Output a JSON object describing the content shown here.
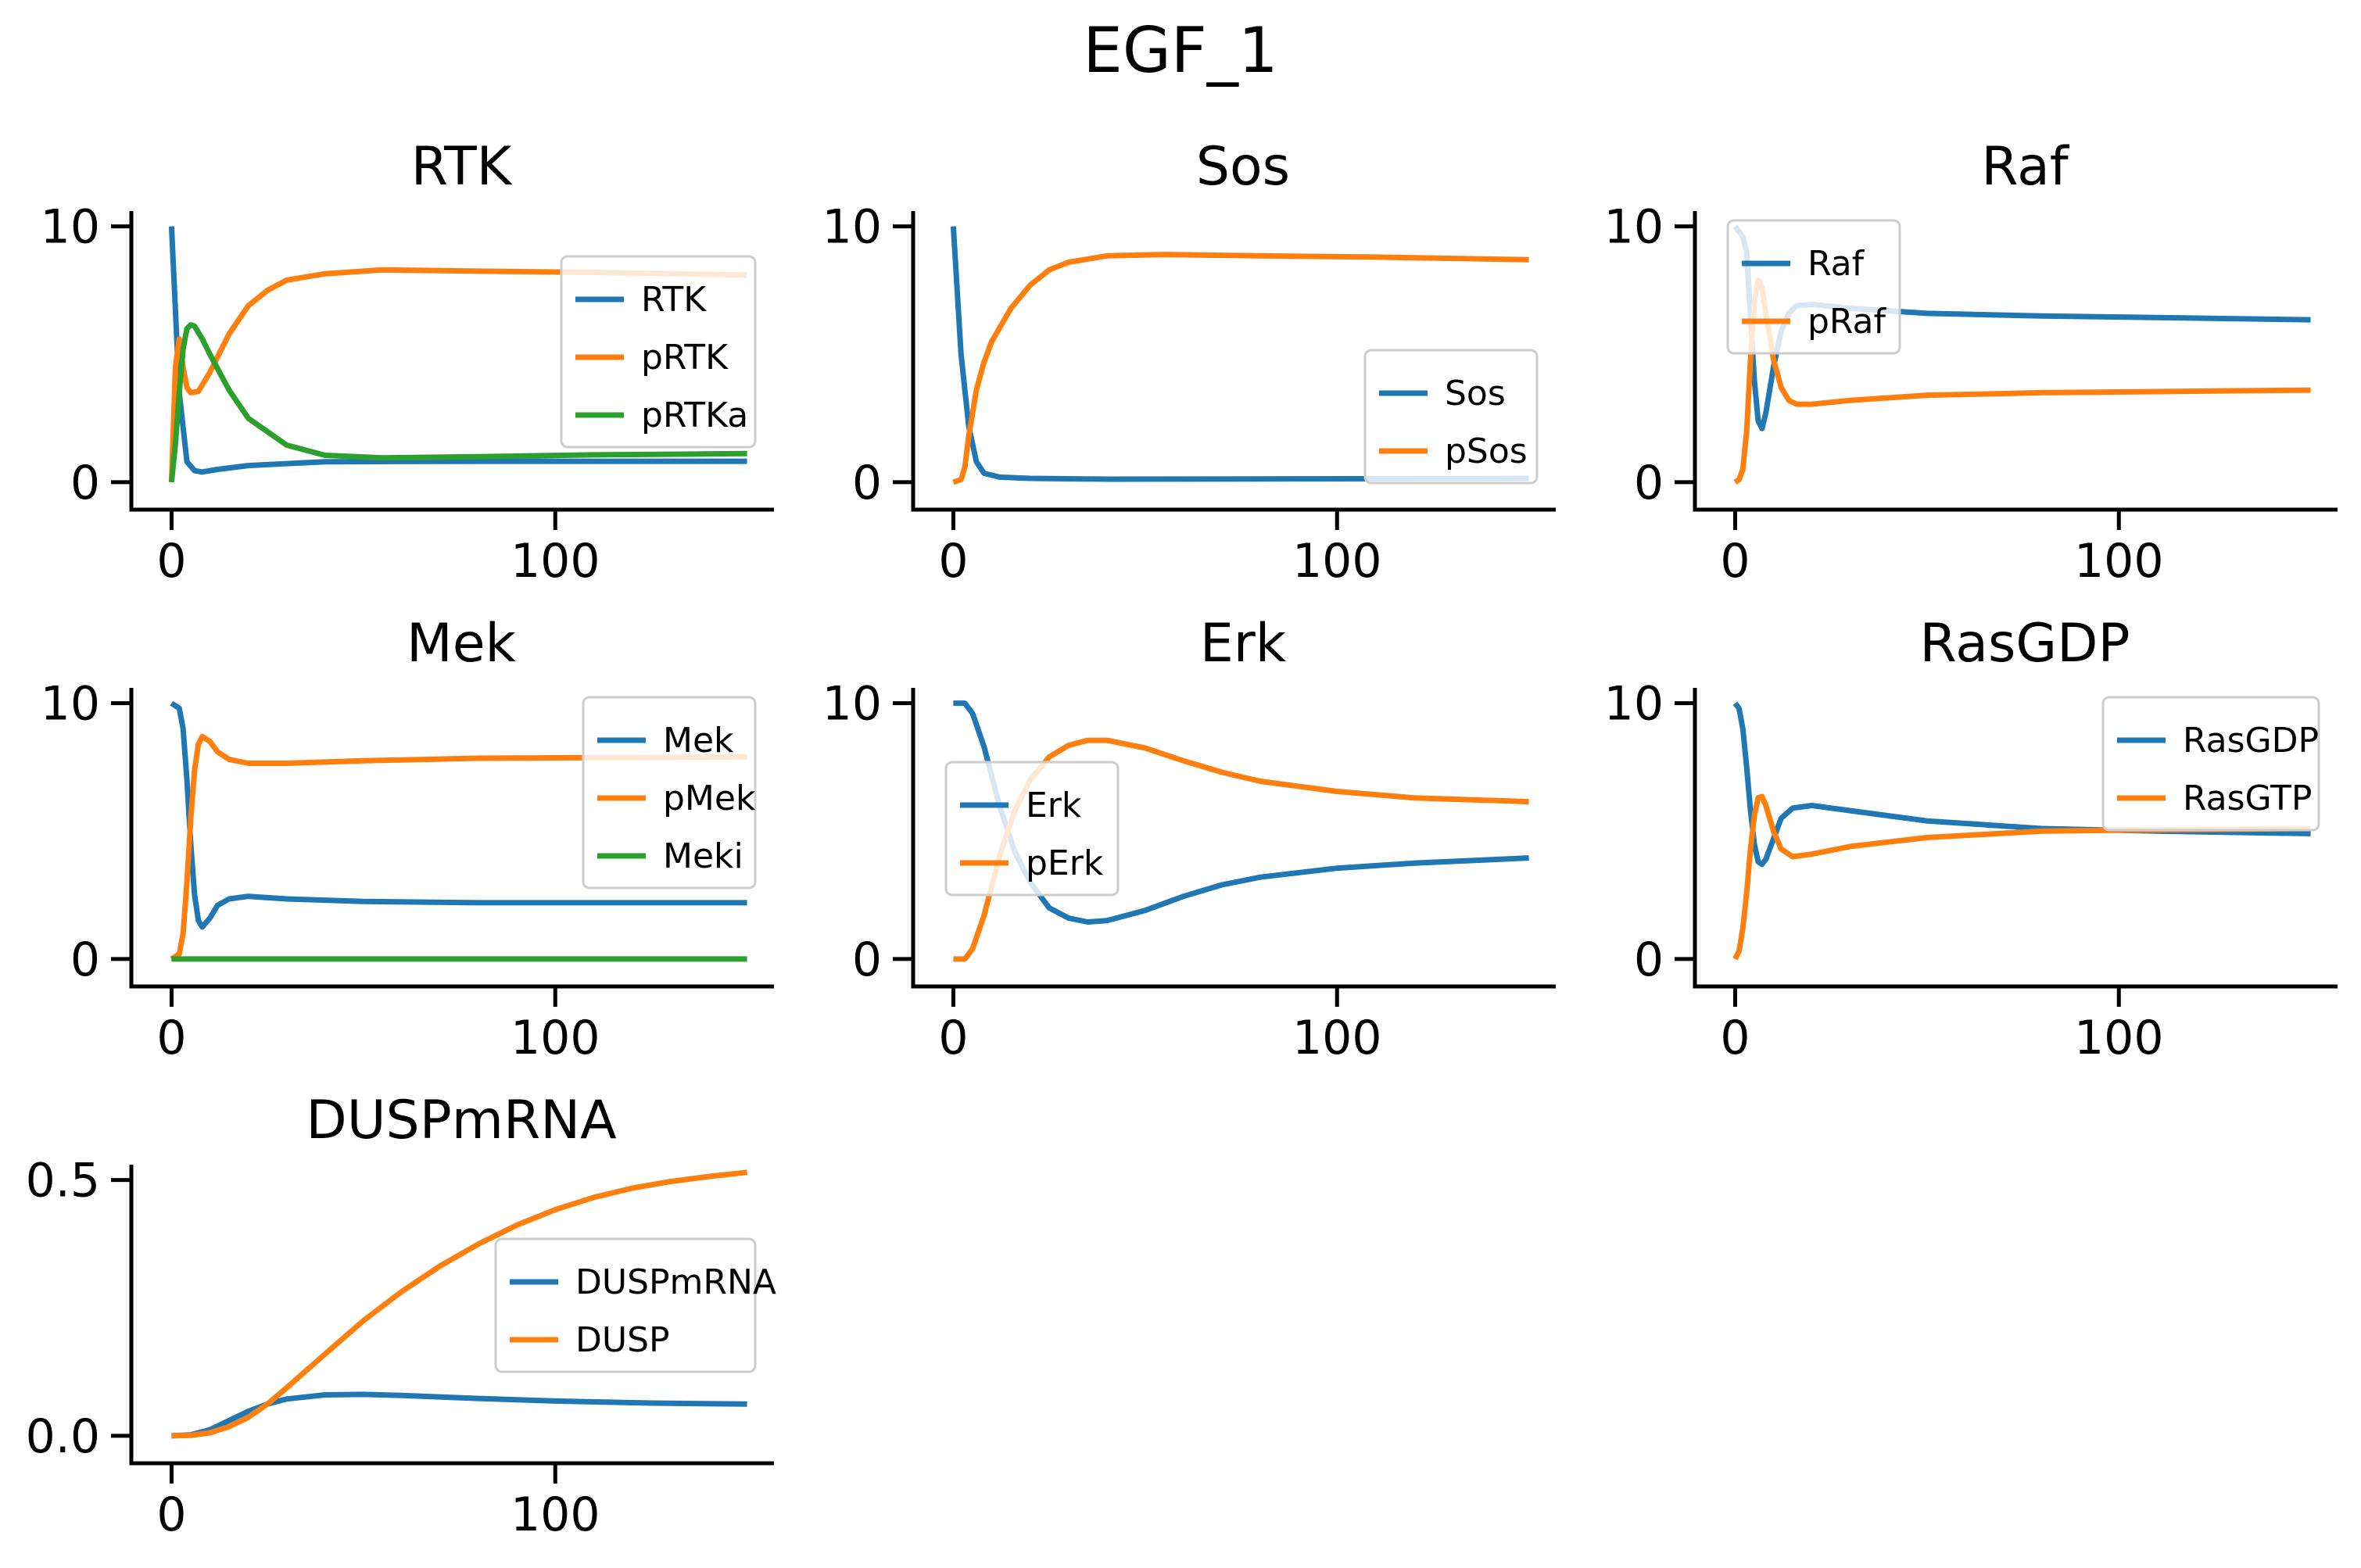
{
  "figure": {
    "title": "EGF_1"
  },
  "colors": {
    "C0": "#1f77b4",
    "C1": "#ff7f0e",
    "C2": "#2ca02c"
  },
  "chart_data": [
    {
      "type": "line",
      "title": "RTK",
      "xlim": [
        -6,
        157
      ],
      "ylim": [
        -0.4,
        10.6
      ],
      "xticks": [
        0,
        100
      ],
      "yticks": [
        0,
        10
      ],
      "legend": "center-right",
      "series": [
        {
          "name": "RTK",
          "color": "C0",
          "points": [
            [
              0,
              10
            ],
            [
              2,
              3.5
            ],
            [
              4,
              0.8
            ],
            [
              6,
              0.45
            ],
            [
              8,
              0.4
            ],
            [
              12,
              0.5
            ],
            [
              20,
              0.65
            ],
            [
              40,
              0.8
            ],
            [
              80,
              0.82
            ],
            [
              150,
              0.82
            ]
          ]
        },
        {
          "name": "pRTK",
          "color": "C1",
          "points": [
            [
              0,
              0
            ],
            [
              1,
              4.5
            ],
            [
              2,
              5.6
            ],
            [
              3,
              4.5
            ],
            [
              4,
              3.7
            ],
            [
              5,
              3.5
            ],
            [
              7,
              3.55
            ],
            [
              10,
              4.3
            ],
            [
              15,
              5.8
            ],
            [
              20,
              6.9
            ],
            [
              25,
              7.5
            ],
            [
              30,
              7.9
            ],
            [
              40,
              8.15
            ],
            [
              55,
              8.3
            ],
            [
              80,
              8.25
            ],
            [
              110,
              8.2
            ],
            [
              150,
              8.1
            ]
          ]
        },
        {
          "name": "pRTKa",
          "color": "C2",
          "points": [
            [
              0,
              0
            ],
            [
              1,
              1.5
            ],
            [
              2,
              3.5
            ],
            [
              3,
              5.2
            ],
            [
              4,
              6
            ],
            [
              5,
              6.15
            ],
            [
              6,
              6.1
            ],
            [
              8,
              5.6
            ],
            [
              10,
              5
            ],
            [
              15,
              3.6
            ],
            [
              20,
              2.5
            ],
            [
              30,
              1.45
            ],
            [
              40,
              1.05
            ],
            [
              55,
              0.95
            ],
            [
              80,
              1
            ],
            [
              110,
              1.07
            ],
            [
              150,
              1.12
            ]
          ]
        }
      ]
    },
    {
      "type": "line",
      "title": "Sos",
      "xlim": [
        -6,
        157
      ],
      "ylim": [
        -0.4,
        10.6
      ],
      "xticks": [
        0,
        100
      ],
      "yticks": [
        0,
        10
      ],
      "legend": "lower-right",
      "series": [
        {
          "name": "Sos",
          "color": "C0",
          "points": [
            [
              0,
              10
            ],
            [
              2,
              5
            ],
            [
              4,
              2.2
            ],
            [
              6,
              0.8
            ],
            [
              8,
              0.35
            ],
            [
              12,
              0.2
            ],
            [
              20,
              0.15
            ],
            [
              40,
              0.12
            ],
            [
              80,
              0.13
            ],
            [
              150,
              0.15
            ]
          ]
        },
        {
          "name": "pSos",
          "color": "C1",
          "points": [
            [
              0,
              0
            ],
            [
              2,
              0.1
            ],
            [
              3,
              0.6
            ],
            [
              4,
              1.8
            ],
            [
              6,
              3.6
            ],
            [
              8,
              4.7
            ],
            [
              10,
              5.5
            ],
            [
              15,
              6.8
            ],
            [
              20,
              7.7
            ],
            [
              25,
              8.3
            ],
            [
              30,
              8.6
            ],
            [
              40,
              8.85
            ],
            [
              55,
              8.9
            ],
            [
              80,
              8.85
            ],
            [
              110,
              8.8
            ],
            [
              150,
              8.7
            ]
          ]
        }
      ]
    },
    {
      "type": "line",
      "title": "Raf",
      "xlim": [
        -6,
        157
      ],
      "ylim": [
        -0.4,
        10.6
      ],
      "xticks": [
        0,
        100
      ],
      "yticks": [
        0,
        10
      ],
      "legend": "upper-left",
      "series": [
        {
          "name": "Raf",
          "color": "C0",
          "points": [
            [
              0,
              10
            ],
            [
              2,
              9.6
            ],
            [
              3,
              9
            ],
            [
              4,
              6.5
            ],
            [
              5,
              4
            ],
            [
              6,
              2.4
            ],
            [
              7,
              2.1
            ],
            [
              8,
              2.7
            ],
            [
              10,
              4.5
            ],
            [
              12,
              5.9
            ],
            [
              14,
              6.6
            ],
            [
              16,
              6.9
            ],
            [
              20,
              6.95
            ],
            [
              30,
              6.8
            ],
            [
              50,
              6.6
            ],
            [
              80,
              6.5
            ],
            [
              150,
              6.35
            ]
          ]
        },
        {
          "name": "pRaf",
          "color": "C1",
          "points": [
            [
              0,
              0
            ],
            [
              1,
              0.1
            ],
            [
              2,
              0.5
            ],
            [
              3,
              2
            ],
            [
              4,
              4.8
            ],
            [
              5,
              7
            ],
            [
              6,
              7.9
            ],
            [
              7,
              7.6
            ],
            [
              8,
              6.6
            ],
            [
              10,
              4.8
            ],
            [
              12,
              3.7
            ],
            [
              14,
              3.2
            ],
            [
              16,
              3.05
            ],
            [
              20,
              3.05
            ],
            [
              30,
              3.2
            ],
            [
              50,
              3.4
            ],
            [
              80,
              3.5
            ],
            [
              150,
              3.6
            ]
          ]
        }
      ]
    },
    {
      "type": "line",
      "title": "Mek",
      "xlim": [
        -6,
        157
      ],
      "ylim": [
        -0.4,
        10.6
      ],
      "xticks": [
        0,
        100
      ],
      "yticks": [
        0,
        10
      ],
      "legend": "upper-right",
      "series": [
        {
          "name": "Mek",
          "color": "C0",
          "points": [
            [
              0,
              10
            ],
            [
              2,
              9.8
            ],
            [
              3,
              9
            ],
            [
              4,
              7
            ],
            [
              5,
              4.5
            ],
            [
              6,
              2.5
            ],
            [
              7,
              1.5
            ],
            [
              8,
              1.25
            ],
            [
              10,
              1.6
            ],
            [
              12,
              2.1
            ],
            [
              15,
              2.35
            ],
            [
              20,
              2.45
            ],
            [
              30,
              2.35
            ],
            [
              50,
              2.25
            ],
            [
              80,
              2.2
            ],
            [
              150,
              2.2
            ]
          ]
        },
        {
          "name": "pMek",
          "color": "C1",
          "points": [
            [
              0,
              0
            ],
            [
              2,
              0.2
            ],
            [
              3,
              1
            ],
            [
              4,
              3
            ],
            [
              5,
              5.5
            ],
            [
              6,
              7.4
            ],
            [
              7,
              8.4
            ],
            [
              8,
              8.7
            ],
            [
              10,
              8.5
            ],
            [
              12,
              8.1
            ],
            [
              15,
              7.8
            ],
            [
              20,
              7.65
            ],
            [
              30,
              7.65
            ],
            [
              50,
              7.75
            ],
            [
              80,
              7.85
            ],
            [
              150,
              7.9
            ]
          ]
        },
        {
          "name": "Meki",
          "color": "C2",
          "points": [
            [
              0,
              0
            ],
            [
              150,
              0
            ]
          ]
        }
      ]
    },
    {
      "type": "line",
      "title": "Erk",
      "xlim": [
        -6,
        157
      ],
      "ylim": [
        -0.4,
        10.6
      ],
      "xticks": [
        0,
        100
      ],
      "yticks": [
        0,
        10
      ],
      "legend": "center-left",
      "series": [
        {
          "name": "Erk",
          "color": "C0",
          "points": [
            [
              0,
              10
            ],
            [
              3,
              10
            ],
            [
              5,
              9.6
            ],
            [
              8,
              8.3
            ],
            [
              12,
              6
            ],
            [
              16,
              4.2
            ],
            [
              20,
              3
            ],
            [
              25,
              2
            ],
            [
              30,
              1.6
            ],
            [
              35,
              1.45
            ],
            [
              40,
              1.5
            ],
            [
              50,
              1.9
            ],
            [
              60,
              2.45
            ],
            [
              70,
              2.9
            ],
            [
              80,
              3.2
            ],
            [
              100,
              3.55
            ],
            [
              120,
              3.75
            ],
            [
              150,
              3.95
            ]
          ]
        },
        {
          "name": "pErk",
          "color": "C1",
          "points": [
            [
              0,
              0
            ],
            [
              3,
              0
            ],
            [
              5,
              0.4
            ],
            [
              8,
              1.7
            ],
            [
              12,
              4
            ],
            [
              16,
              5.8
            ],
            [
              20,
              7
            ],
            [
              25,
              7.9
            ],
            [
              30,
              8.35
            ],
            [
              35,
              8.55
            ],
            [
              40,
              8.55
            ],
            [
              50,
              8.25
            ],
            [
              60,
              7.75
            ],
            [
              70,
              7.3
            ],
            [
              80,
              6.95
            ],
            [
              100,
              6.55
            ],
            [
              120,
              6.3
            ],
            [
              150,
              6.15
            ]
          ]
        }
      ]
    },
    {
      "type": "line",
      "title": "RasGDP",
      "xlim": [
        -6,
        157
      ],
      "ylim": [
        -0.4,
        10.6
      ],
      "xticks": [
        0,
        100
      ],
      "yticks": [
        0,
        10
      ],
      "legend": "upper-right",
      "series": [
        {
          "name": "RasGDP",
          "color": "C0",
          "points": [
            [
              0,
              10
            ],
            [
              1,
              9.8
            ],
            [
              2,
              9
            ],
            [
              3,
              7.5
            ],
            [
              4,
              5.8
            ],
            [
              5,
              4.5
            ],
            [
              6,
              3.8
            ],
            [
              7,
              3.7
            ],
            [
              8,
              3.9
            ],
            [
              10,
              4.7
            ],
            [
              12,
              5.5
            ],
            [
              15,
              5.9
            ],
            [
              20,
              6
            ],
            [
              30,
              5.8
            ],
            [
              50,
              5.4
            ],
            [
              80,
              5.1
            ],
            [
              110,
              5
            ],
            [
              150,
              4.9
            ]
          ]
        },
        {
          "name": "RasGTP",
          "color": "C1",
          "points": [
            [
              0,
              0
            ],
            [
              1,
              0.3
            ],
            [
              2,
              1.2
            ],
            [
              3,
              2.6
            ],
            [
              4,
              4.3
            ],
            [
              5,
              5.6
            ],
            [
              6,
              6.3
            ],
            [
              7,
              6.35
            ],
            [
              8,
              6
            ],
            [
              10,
              5
            ],
            [
              12,
              4.3
            ],
            [
              15,
              4
            ],
            [
              20,
              4.1
            ],
            [
              30,
              4.4
            ],
            [
              50,
              4.75
            ],
            [
              80,
              5
            ],
            [
              110,
              5.05
            ],
            [
              150,
              5.1
            ]
          ]
        }
      ]
    },
    {
      "type": "line",
      "title": "DUSPmRNA",
      "xlim": [
        -6,
        157
      ],
      "ylim": [
        -0.02,
        0.53
      ],
      "xticks": [
        0,
        100
      ],
      "yticks": [
        0.0,
        0.5
      ],
      "yticklabels": [
        "0.0",
        "0.5"
      ],
      "legend": "center-right",
      "series": [
        {
          "name": "DUSPmRNA",
          "color": "C0",
          "points": [
            [
              0,
              0
            ],
            [
              5,
              0.002
            ],
            [
              10,
              0.012
            ],
            [
              15,
              0.03
            ],
            [
              20,
              0.048
            ],
            [
              25,
              0.062
            ],
            [
              30,
              0.072
            ],
            [
              40,
              0.08
            ],
            [
              50,
              0.081
            ],
            [
              60,
              0.079
            ],
            [
              80,
              0.073
            ],
            [
              100,
              0.068
            ],
            [
              125,
              0.064
            ],
            [
              150,
              0.062
            ]
          ]
        },
        {
          "name": "DUSP",
          "color": "C1",
          "points": [
            [
              0,
              0
            ],
            [
              5,
              0.001
            ],
            [
              10,
              0.006
            ],
            [
              15,
              0.018
            ],
            [
              20,
              0.036
            ],
            [
              25,
              0.062
            ],
            [
              30,
              0.094
            ],
            [
              40,
              0.16
            ],
            [
              50,
              0.225
            ],
            [
              60,
              0.282
            ],
            [
              70,
              0.332
            ],
            [
              80,
              0.375
            ],
            [
              90,
              0.412
            ],
            [
              100,
              0.442
            ],
            [
              110,
              0.466
            ],
            [
              120,
              0.484
            ],
            [
              130,
              0.497
            ],
            [
              140,
              0.507
            ],
            [
              150,
              0.515
            ]
          ]
        }
      ]
    }
  ]
}
